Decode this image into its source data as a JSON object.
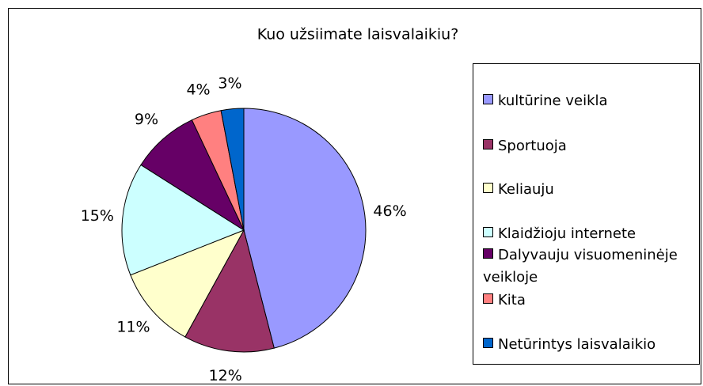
{
  "chart_data": {
    "type": "pie",
    "title": "Kuo užsiimate laisvalaikiu?",
    "categories": [
      "kultūrine veikla",
      "Sportuoja",
      "Keliauju",
      "Klaidžioju internete",
      "Dalyvauju visuomeninėje veikloje",
      "Kita",
      "Netūrintys laisvalaikio"
    ],
    "values": [
      46,
      12,
      11,
      15,
      9,
      4,
      3
    ],
    "value_labels": [
      "46%",
      "12%",
      "11%",
      "15%",
      "9%",
      "4%",
      "3%"
    ],
    "colors": [
      "#9999ff",
      "#993366",
      "#ffffcc",
      "#ccffff",
      "#660066",
      "#ff8080",
      "#0066cc"
    ],
    "legend": "right"
  }
}
